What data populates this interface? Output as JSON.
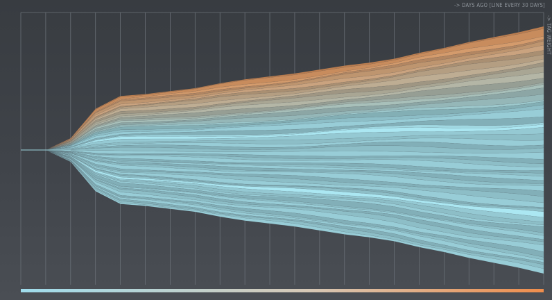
{
  "labels": {
    "x_axis": "-> DAYS AGO [LINE EVERY 30 DAYS]",
    "y_axis": "-> TAG WEIGHT"
  },
  "colors": {
    "background": "#3d4146",
    "grid": "#6a7077",
    "cool": "#9ed6e0",
    "warm": "#e59a62",
    "baseline": "#b9d7de"
  },
  "chart_data": {
    "type": "area",
    "subtype": "streamgraph",
    "xlabel": "-> DAYS AGO [LINE EVERY 30 DAYS]",
    "ylabel": "-> TAG WEIGHT",
    "grid_interval_days": 30,
    "x_days": [
      0,
      30,
      60,
      90,
      120,
      150,
      180,
      210,
      240,
      270,
      300,
      330,
      360,
      390,
      420,
      450,
      480,
      510,
      540,
      570,
      600,
      630
    ],
    "total_weight_relative": [
      0.0,
      0.0,
      0.12,
      0.42,
      0.55,
      0.57,
      0.6,
      0.63,
      0.68,
      0.72,
      0.75,
      0.78,
      0.82,
      0.86,
      0.89,
      0.93,
      0.99,
      1.04,
      1.1,
      1.15,
      1.2,
      1.26
    ],
    "layer_count": 60,
    "grid": true,
    "legend": "none"
  }
}
